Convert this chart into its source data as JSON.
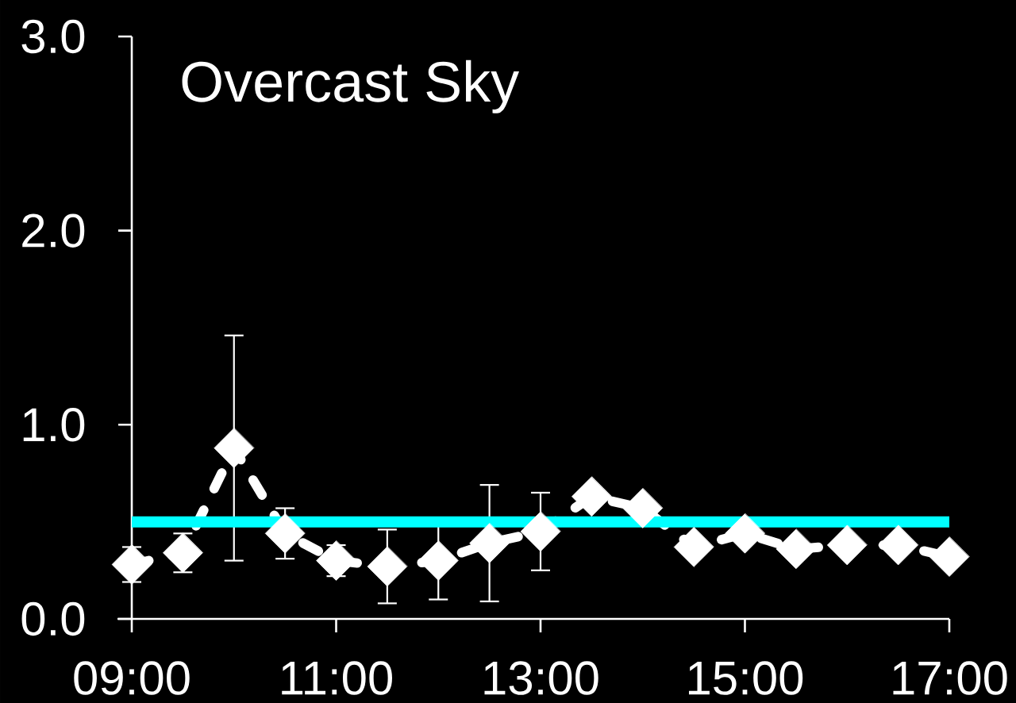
{
  "chart_data": {
    "type": "line",
    "title": "Overcast Sky",
    "x": [
      9,
      9.5,
      10,
      10.5,
      11,
      11.5,
      12,
      12.5,
      13,
      13.5,
      14,
      14.5,
      15,
      15.5,
      16,
      16.5,
      17
    ],
    "values": [
      0.28,
      0.34,
      0.88,
      0.44,
      0.3,
      0.27,
      0.3,
      0.39,
      0.45,
      0.63,
      0.57,
      0.37,
      0.44,
      0.36,
      0.38,
      0.38,
      0.32
    ],
    "errors": [
      0.09,
      0.1,
      0.58,
      0.13,
      0.08,
      0.19,
      0.2,
      0.3,
      0.2,
      null,
      null,
      null,
      null,
      null,
      null,
      null,
      null
    ],
    "color": "#ffffff",
    "marker": "diamond",
    "line_style": "dashed",
    "xlim": [
      9,
      17
    ],
    "xticks": [
      {
        "value": 9,
        "label": "09:00"
      },
      {
        "value": 11,
        "label": "11:00"
      },
      {
        "value": 13,
        "label": "13:00"
      },
      {
        "value": 15,
        "label": "15:00"
      },
      {
        "value": 17,
        "label": "17:00"
      }
    ],
    "ylim": [
      0,
      3
    ],
    "yticks": [
      {
        "value": 0,
        "label": "0.0"
      },
      {
        "value": 1,
        "label": "1.0"
      },
      {
        "value": 2,
        "label": "2.0"
      },
      {
        "value": 3,
        "label": "3.0"
      }
    ],
    "ref_lines": [
      {
        "axis": "y",
        "value": 0.5,
        "color": "#00ffff"
      }
    ]
  }
}
